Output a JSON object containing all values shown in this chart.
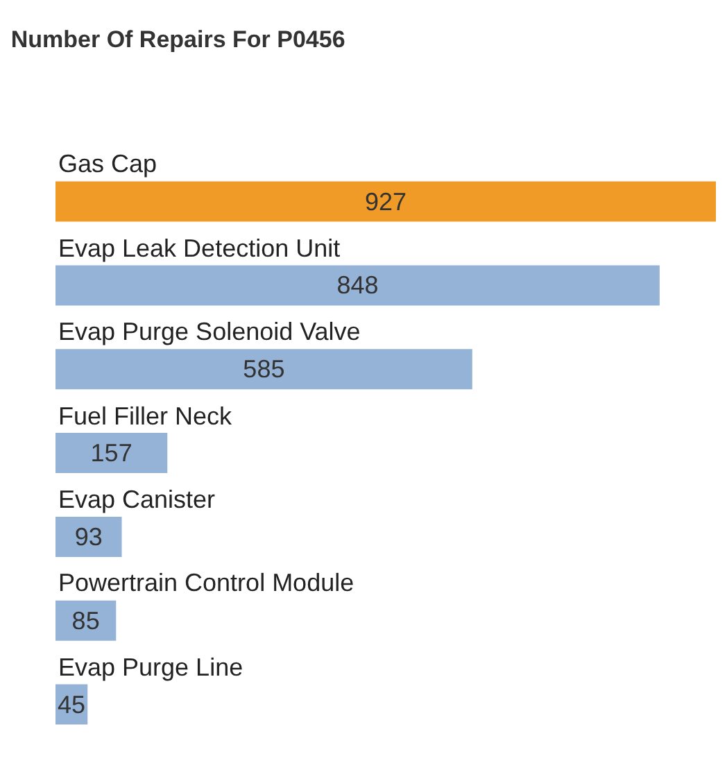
{
  "chart_data": {
    "type": "bar",
    "orientation": "horizontal",
    "title": "Number Of Repairs For P0456",
    "categories": [
      "Gas Cap",
      "Evap Leak Detection Unit",
      "Evap Purge Solenoid Valve",
      "Fuel Filler Neck",
      "Evap Canister",
      "Powertrain Control Module",
      "Evap Purge Line"
    ],
    "values": [
      927,
      848,
      585,
      157,
      93,
      85,
      45
    ],
    "colors": [
      "#f09a28",
      "#94b3d7",
      "#94b3d7",
      "#94b3d7",
      "#94b3d7",
      "#94b3d7",
      "#94b3d7"
    ],
    "data_labels": true
  }
}
